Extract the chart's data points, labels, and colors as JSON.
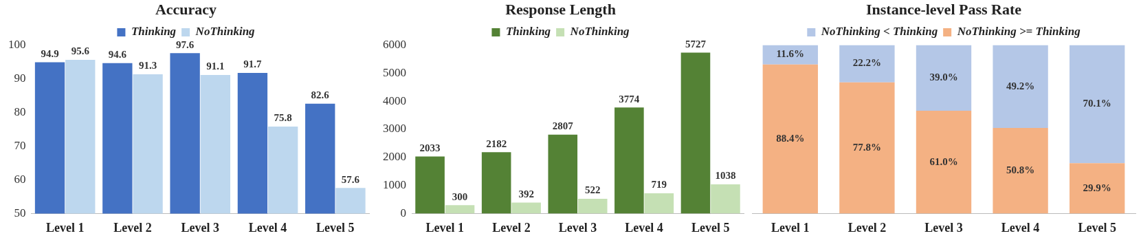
{
  "chart_data": [
    {
      "type": "bar",
      "title": "Accuracy",
      "categories": [
        "Level 1",
        "Level 2",
        "Level 3",
        "Level 4",
        "Level 5"
      ],
      "series": [
        {
          "name": "Thinking",
          "color": "#4472c4",
          "values": [
            94.9,
            94.6,
            97.6,
            91.7,
            82.6
          ]
        },
        {
          "name": "NoThinking",
          "color": "#bdd7ee",
          "values": [
            95.6,
            91.3,
            91.1,
            75.8,
            57.6
          ]
        }
      ],
      "ylim": [
        50,
        100
      ],
      "yticks": [
        50,
        60,
        70,
        80,
        90,
        100
      ],
      "data_labels": true,
      "legend": "top",
      "grid": false
    },
    {
      "type": "bar",
      "title": "Response Length",
      "categories": [
        "Level 1",
        "Level 2",
        "Level 3",
        "Level 4",
        "Level 5"
      ],
      "series": [
        {
          "name": "Thinking",
          "color": "#548235",
          "values": [
            2033,
            2182,
            2807,
            3774,
            5727
          ]
        },
        {
          "name": "NoThinking",
          "color": "#c5e0b4",
          "values": [
            300,
            392,
            522,
            719,
            1038
          ]
        }
      ],
      "ylim": [
        0,
        6000
      ],
      "yticks": [
        0,
        1000,
        2000,
        3000,
        4000,
        5000,
        6000
      ],
      "data_labels": true,
      "legend": "top",
      "grid": false
    },
    {
      "type": "bar",
      "title": "Instance-level Pass Rate",
      "categories": [
        "Level 1",
        "Level 2",
        "Level 3",
        "Level 4",
        "Level 5"
      ],
      "stacked": true,
      "series": [
        {
          "name": "NoThinking >= Thinking",
          "color": "#f4b183",
          "values": [
            88.4,
            77.8,
            61.0,
            50.8,
            29.9
          ],
          "value_labels": [
            "88.4%",
            "77.8%",
            "61.0%",
            "50.8%",
            "29.9%"
          ]
        },
        {
          "name": "NoThinking < Thinking",
          "color": "#b4c7e7",
          "values": [
            11.6,
            22.2,
            39.0,
            49.2,
            70.1
          ],
          "value_labels": [
            "11.6%",
            "22.2%",
            "39.0%",
            "49.2%",
            "70.1%"
          ]
        }
      ],
      "ylim": [
        0,
        100
      ],
      "tick_labels": "x",
      "legend": "top",
      "grid": false
    }
  ]
}
